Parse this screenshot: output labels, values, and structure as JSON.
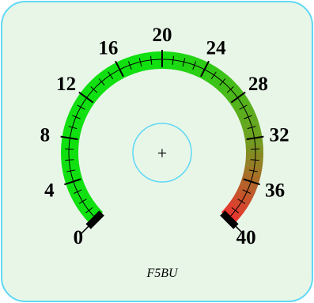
{
  "gauge": {
    "min": 0,
    "max": 40,
    "value": 0,
    "major_ticks": [
      0,
      4,
      8,
      12,
      16,
      20,
      24,
      28,
      32,
      36,
      40
    ],
    "labels": [
      "0",
      "4",
      "8",
      "12",
      "16",
      "20",
      "24",
      "28",
      "32",
      "36",
      "40"
    ],
    "minor_step": 1,
    "brand": "F5BU",
    "center_symbol": "+",
    "colors": {
      "panel_background": "#e8f6e8",
      "panel_border": "#5fd8f4",
      "center_circle": "#5fd8f4",
      "arc_low": "#10e010",
      "arc_mid": "#6ea020",
      "arc_high": "#ee3030",
      "needle": "#000000",
      "text": "#000000"
    }
  }
}
